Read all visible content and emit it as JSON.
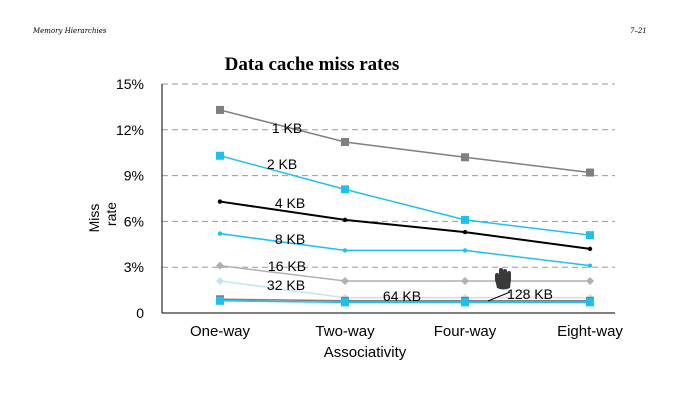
{
  "header": {
    "left": "Memory Hierarchies",
    "right": "7–21"
  },
  "chart_data": {
    "type": "line",
    "title": "Data cache miss rates",
    "xlabel": "Associativity",
    "ylabel": [
      "Miss",
      "rate"
    ],
    "categories": [
      "One-way",
      "Two-way",
      "Four-way",
      "Eight-way"
    ],
    "y_ticks": [
      {
        "value": 0,
        "label": "0"
      },
      {
        "value": 3,
        "label": "3%"
      },
      {
        "value": 6,
        "label": "6%"
      },
      {
        "value": 9,
        "label": "9%"
      },
      {
        "value": 12,
        "label": "12%"
      },
      {
        "value": 15,
        "label": "15%"
      }
    ],
    "ylim": [
      0,
      15
    ],
    "grid": "horizontal dashed",
    "series": [
      {
        "name": "1 KB",
        "values": [
          13.3,
          11.2,
          10.2,
          9.2
        ],
        "color": "#7f7f7f",
        "marker": "square"
      },
      {
        "name": "2 KB",
        "values": [
          10.3,
          8.1,
          6.1,
          5.1
        ],
        "color": "#1ec0f0",
        "marker": "square"
      },
      {
        "name": "4 KB",
        "values": [
          7.3,
          6.1,
          5.3,
          4.2
        ],
        "color": "#000000",
        "marker": "dot"
      },
      {
        "name": "8 KB",
        "values": [
          5.2,
          4.1,
          4.1,
          3.1
        ],
        "color": "#1ec0f0",
        "marker": "dot"
      },
      {
        "name": "16 KB",
        "values": [
          3.1,
          2.1,
          2.1,
          2.1
        ],
        "color": "#b0b0b0",
        "marker": "diamond"
      },
      {
        "name": "32 KB",
        "values": [
          2.1,
          1.0,
          1.0,
          1.0
        ],
        "color": "#bfe6f2",
        "marker": "diamond"
      },
      {
        "name": "64 KB",
        "values": [
          0.9,
          0.8,
          0.8,
          0.8
        ],
        "color": "#808080",
        "marker": "square"
      },
      {
        "name": "128 KB",
        "values": [
          0.8,
          0.7,
          0.7,
          0.7
        ],
        "color": "#1ec0f0",
        "marker": "square"
      }
    ]
  }
}
